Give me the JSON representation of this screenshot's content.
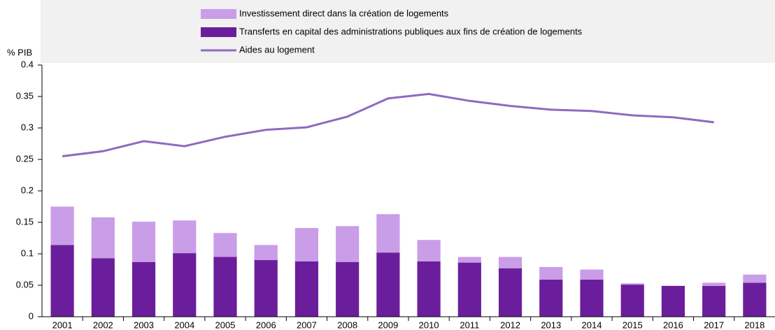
{
  "chart_data": {
    "type": "bar",
    "stacked": true,
    "ylabel": "% PIB",
    "categories": [
      "2001",
      "2002",
      "2003",
      "2004",
      "2005",
      "2006",
      "2007",
      "2008",
      "2009",
      "2010",
      "2011",
      "2012",
      "2013",
      "2014",
      "2015",
      "2016",
      "2017",
      "2018"
    ],
    "series": [
      {
        "name": "Investissement direct dans la création de logements",
        "type": "bar",
        "color": "#c99de8",
        "values": [
          0.061,
          0.065,
          0.064,
          0.052,
          0.038,
          0.024,
          0.053,
          0.057,
          0.061,
          0.034,
          0.009,
          0.018,
          0.02,
          0.016,
          0.002,
          0,
          0.005,
          0.013
        ]
      },
      {
        "name": "Transferts en capital des administrations publiques aux fins de création de logements",
        "type": "bar",
        "color": "#6b1e9b",
        "values": [
          0.114,
          0.093,
          0.087,
          0.101,
          0.095,
          0.09,
          0.088,
          0.087,
          0.102,
          0.088,
          0.086,
          0.077,
          0.059,
          0.059,
          0.051,
          0.049,
          0.049,
          0.054
        ]
      },
      {
        "name": "Aides au logement",
        "type": "line",
        "color": "#8e6bbf",
        "values": [
          0.255,
          0.263,
          0.279,
          0.271,
          0.286,
          0.297,
          0.301,
          0.318,
          0.347,
          0.354,
          0.343,
          0.335,
          0.329,
          0.327,
          0.32,
          0.317,
          0.309,
          null
        ]
      }
    ],
    "ylim": [
      0,
      0.4
    ],
    "yticks": [
      0,
      0.05,
      0.1,
      0.15,
      0.2,
      0.25,
      0.3,
      0.35,
      0.4
    ],
    "grid": false
  }
}
